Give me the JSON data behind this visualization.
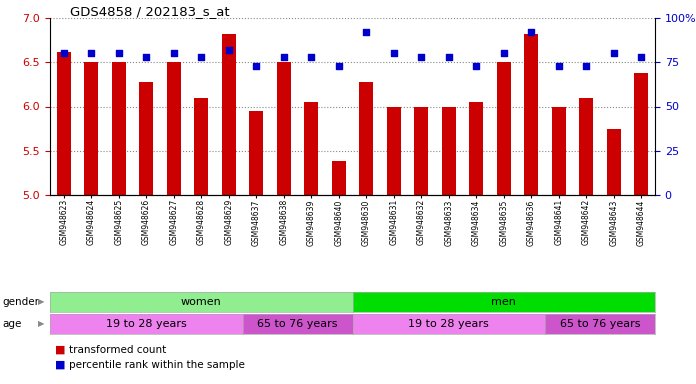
{
  "title": "GDS4858 / 202183_s_at",
  "samples": [
    "GSM948623",
    "GSM948624",
    "GSM948625",
    "GSM948626",
    "GSM948627",
    "GSM948628",
    "GSM948629",
    "GSM948637",
    "GSM948638",
    "GSM948639",
    "GSM948640",
    "GSM948630",
    "GSM948631",
    "GSM948632",
    "GSM948633",
    "GSM948634",
    "GSM948635",
    "GSM948636",
    "GSM948641",
    "GSM948642",
    "GSM948643",
    "GSM948644"
  ],
  "bar_values": [
    6.62,
    6.5,
    6.5,
    6.28,
    6.5,
    6.1,
    6.82,
    5.95,
    6.5,
    6.05,
    5.38,
    6.28,
    6.0,
    6.0,
    6.0,
    6.05,
    6.5,
    6.82,
    6.0,
    6.1,
    5.75,
    6.38
  ],
  "percentile_values": [
    80,
    80,
    80,
    78,
    80,
    78,
    82,
    73,
    78,
    78,
    73,
    92,
    80,
    78,
    78,
    73,
    80,
    92,
    73,
    73,
    80,
    78
  ],
  "bar_color": "#cc0000",
  "percentile_color": "#0000cc",
  "ylim_left": [
    5,
    7
  ],
  "ylim_right": [
    0,
    100
  ],
  "yticks_left": [
    5,
    5.5,
    6,
    6.5,
    7
  ],
  "yticks_right": [
    0,
    25,
    50,
    75,
    100
  ],
  "ytick_labels_right": [
    "0",
    "25",
    "50",
    "75",
    "100%"
  ],
  "gender_groups": [
    {
      "label": "women",
      "start": 0,
      "end": 11,
      "color": "#90ee90"
    },
    {
      "label": "men",
      "start": 11,
      "end": 22,
      "color": "#00dd00"
    }
  ],
  "age_groups": [
    {
      "label": "19 to 28 years",
      "start": 0,
      "end": 7,
      "color": "#ee82ee"
    },
    {
      "label": "65 to 76 years",
      "start": 7,
      "end": 11,
      "color": "#cc55cc"
    },
    {
      "label": "19 to 28 years",
      "start": 11,
      "end": 18,
      "color": "#ee82ee"
    },
    {
      "label": "65 to 76 years",
      "start": 18,
      "end": 22,
      "color": "#cc55cc"
    }
  ],
  "legend_items": [
    {
      "label": "transformed count",
      "color": "#cc0000"
    },
    {
      "label": "percentile rank within the sample",
      "color": "#0000cc"
    }
  ],
  "background_color": "#ffffff",
  "bar_width": 0.5,
  "dotted_grid_color": "#888888"
}
